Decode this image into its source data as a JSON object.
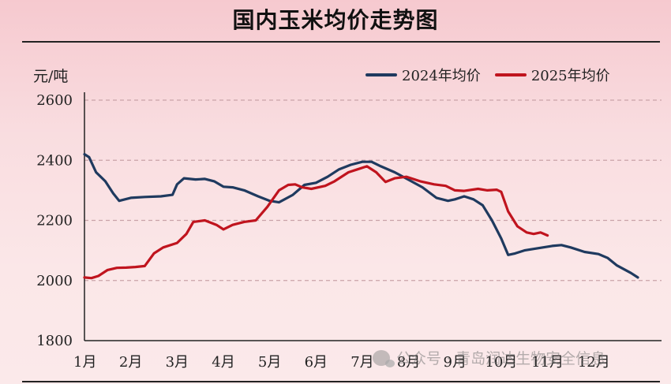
{
  "chart_data": {
    "type": "line",
    "title": "国内玉米均价走势图",
    "ylabel": "元/吨",
    "xlabel": "",
    "ylim": [
      1800,
      2600
    ],
    "yticks": [
      1800,
      2000,
      2200,
      2400,
      2600
    ],
    "grid": "horizontal-dashed",
    "legend_position": "top-right",
    "categories": [
      "1月",
      "2月",
      "3月",
      "4月",
      "5月",
      "6月",
      "7月",
      "8月",
      "9月",
      "10月",
      "11月",
      "12月"
    ],
    "series": [
      {
        "name": "2024年均价",
        "color": "#1f3a5f",
        "x": [
          1.0,
          1.1,
          1.25,
          1.45,
          1.62,
          1.75,
          2.0,
          2.3,
          2.65,
          2.9,
          3.0,
          3.15,
          3.4,
          3.6,
          3.8,
          4.0,
          4.2,
          4.45,
          4.75,
          5.0,
          5.2,
          5.5,
          5.75,
          6.0,
          6.25,
          6.5,
          6.75,
          7.0,
          7.2,
          7.4,
          7.7,
          8.0,
          8.3,
          8.6,
          8.85,
          9.0,
          9.2,
          9.4,
          9.6,
          9.8,
          10.0,
          10.15,
          10.3,
          10.5,
          10.7,
          10.9,
          11.1,
          11.3,
          11.5,
          11.8,
          12.1,
          12.3,
          12.5,
          12.8,
          12.95
        ],
        "values": [
          2420,
          2410,
          2360,
          2330,
          2290,
          2265,
          2275,
          2278,
          2280,
          2285,
          2320,
          2340,
          2336,
          2338,
          2330,
          2312,
          2310,
          2300,
          2280,
          2265,
          2260,
          2285,
          2318,
          2325,
          2345,
          2370,
          2385,
          2395,
          2395,
          2380,
          2360,
          2335,
          2310,
          2275,
          2265,
          2270,
          2280,
          2270,
          2250,
          2200,
          2140,
          2085,
          2090,
          2100,
          2105,
          2110,
          2115,
          2118,
          2110,
          2095,
          2088,
          2075,
          2050,
          2025,
          2010
        ]
      },
      {
        "name": "2025年均价",
        "color": "#c0141e",
        "x": [
          1.0,
          1.15,
          1.3,
          1.5,
          1.7,
          1.9,
          2.1,
          2.3,
          2.5,
          2.7,
          3.0,
          3.2,
          3.35,
          3.6,
          3.85,
          4.0,
          4.2,
          4.45,
          4.7,
          4.95,
          5.2,
          5.4,
          5.55,
          5.7,
          5.9,
          6.2,
          6.4,
          6.7,
          6.9,
          7.1,
          7.3,
          7.5,
          7.7,
          7.95,
          8.25,
          8.55,
          8.8,
          9.0,
          9.2,
          9.5,
          9.7,
          9.9,
          10.0,
          10.15,
          10.35,
          10.55,
          10.7,
          10.85,
          11.0
        ],
        "values": [
          2010,
          2008,
          2015,
          2035,
          2042,
          2043,
          2045,
          2048,
          2090,
          2110,
          2125,
          2155,
          2195,
          2200,
          2185,
          2170,
          2185,
          2195,
          2200,
          2245,
          2300,
          2318,
          2320,
          2310,
          2305,
          2315,
          2330,
          2360,
          2370,
          2380,
          2360,
          2328,
          2340,
          2345,
          2330,
          2320,
          2315,
          2300,
          2298,
          2305,
          2300,
          2302,
          2295,
          2230,
          2180,
          2160,
          2155,
          2160,
          2150
        ]
      }
    ],
    "watermark": "公众号 · 青岛润达生物安全信息"
  }
}
